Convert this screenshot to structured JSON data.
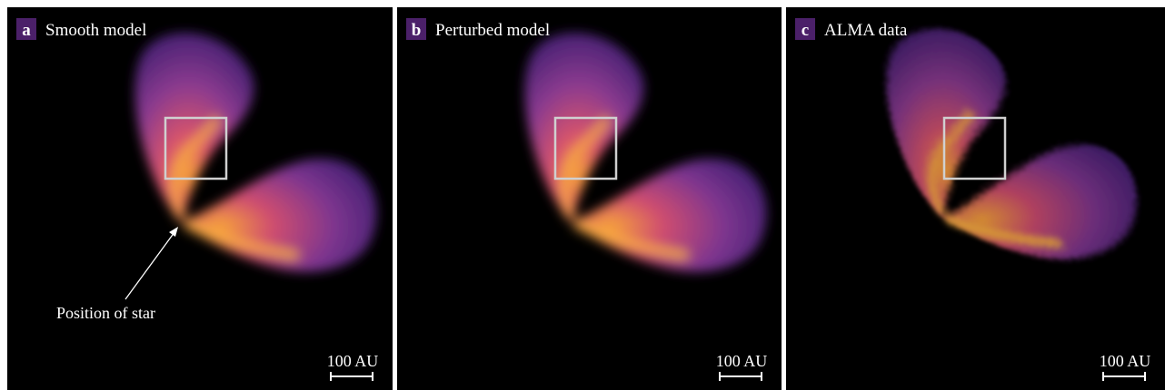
{
  "panels": [
    {
      "letter": "a",
      "title": "Smooth model",
      "scale": "100 AU"
    },
    {
      "letter": "b",
      "title": "Perturbed model",
      "scale": "100 AU"
    },
    {
      "letter": "c",
      "title": "ALMA data",
      "scale": "100 AU"
    }
  ],
  "annotation": "Position of star"
}
